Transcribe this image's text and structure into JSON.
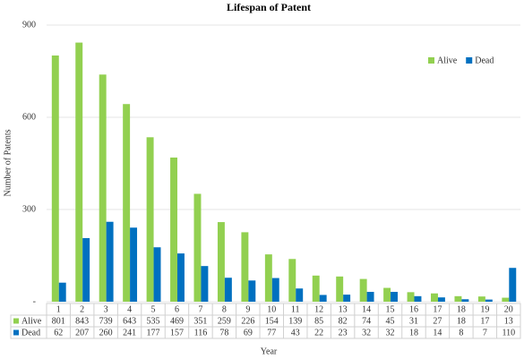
{
  "chart_data": {
    "type": "bar",
    "title": "Lifespan of Patent",
    "y_label": "Number of Patents",
    "x_label": "Year",
    "categories": [
      "1",
      "2",
      "3",
      "4",
      "5",
      "6",
      "7",
      "8",
      "9",
      "10",
      "11",
      "12",
      "13",
      "14",
      "15",
      "16",
      "17",
      "18",
      "19",
      "20"
    ],
    "series": [
      {
        "name": "Alive",
        "color": "#92d050",
        "values": [
          801,
          843,
          739,
          643,
          535,
          469,
          351,
          259,
          226,
          154,
          139,
          85,
          82,
          74,
          45,
          31,
          27,
          18,
          17,
          13
        ]
      },
      {
        "name": "Dead",
        "color": "#0070c0",
        "values": [
          62,
          207,
          260,
          241,
          177,
          157,
          116,
          78,
          69,
          77,
          43,
          22,
          23,
          32,
          32,
          18,
          14,
          8,
          7,
          110
        ]
      }
    ],
    "ylim": [
      0,
      900
    ],
    "yticks": [
      {
        "value": 0,
        "label": "-"
      },
      300,
      600,
      900
    ],
    "grid": true,
    "legend": "top-right"
  }
}
